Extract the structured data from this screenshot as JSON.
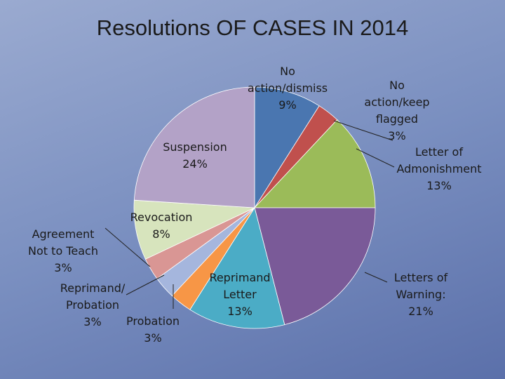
{
  "chart_data": {
    "type": "pie",
    "title": "Resolutions OF CASES IN 2014",
    "categories": [
      "No action/dismiss",
      "No action/keep flagged",
      "Letter of Admonishment",
      "Letters of Warning:",
      "Reprimand Letter",
      "Probation",
      "Reprimand/ Probation",
      "Agreement Not to Teach",
      "Revocation",
      "Suspension"
    ],
    "values": [
      9,
      3,
      13,
      21,
      13,
      3,
      3,
      3,
      8,
      24
    ],
    "value_labels": [
      "9%",
      "3%",
      "13%",
      "21%",
      "13%",
      "3%",
      "3%",
      "3%",
      "8%",
      "24%"
    ],
    "colors": [
      "#4a76b0",
      "#c0504d",
      "#9bbb59",
      "#7a5a98",
      "#4bacc6",
      "#f79646",
      "#a5b6dd",
      "#d99694",
      "#d7e4bd",
      "#b3a2c7"
    ]
  }
}
